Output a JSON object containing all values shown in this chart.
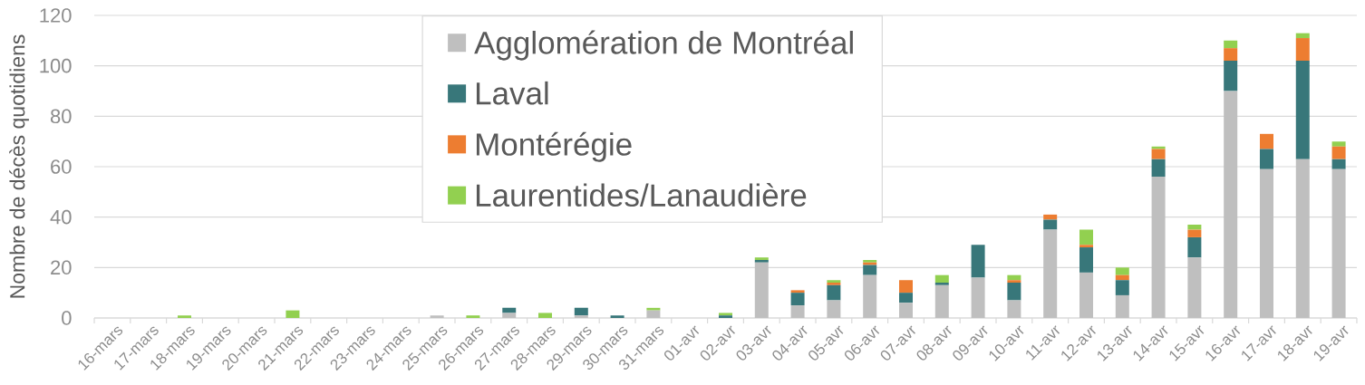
{
  "chart_data": {
    "type": "bar",
    "stacked": true,
    "ylabel": "Nombre de décès quotidiens",
    "categories": [
      "16-mars",
      "17-mars",
      "18-mars",
      "19-mars",
      "20-mars",
      "21-mars",
      "22-mars",
      "23-mars",
      "24-mars",
      "25-mars",
      "26-mars",
      "27-mars",
      "28-mars",
      "29-mars",
      "30-mars",
      "31-mars",
      "01-avr",
      "02-avr",
      "03-avr",
      "04-avr",
      "05-avr",
      "06-avr",
      "07-avr",
      "08-avr",
      "09-avr",
      "10-avr",
      "11-avr",
      "12-avr",
      "13-avr",
      "14-avr",
      "15-avr",
      "16-avr",
      "17-avr",
      "18-avr",
      "19-avr"
    ],
    "series": [
      {
        "name": "Agglomération de Montréal",
        "color": "#bfbfbf",
        "values": [
          0,
          0,
          0,
          0,
          0,
          0,
          0,
          0,
          0,
          1,
          0,
          2,
          0,
          1,
          0,
          3,
          0,
          0,
          22,
          5,
          7,
          17,
          6,
          13,
          16,
          7,
          35,
          18,
          9,
          56,
          24,
          90,
          59,
          63,
          59
        ]
      },
      {
        "name": "Laval",
        "color": "#38777a",
        "values": [
          0,
          0,
          0,
          0,
          0,
          0,
          0,
          0,
          0,
          0,
          0,
          2,
          0,
          3,
          1,
          0,
          0,
          1,
          1,
          5,
          6,
          4,
          4,
          1,
          13,
          7,
          4,
          10,
          6,
          7,
          8,
          12,
          8,
          39,
          4
        ]
      },
      {
        "name": "Montérégie",
        "color": "#ed7d31",
        "values": [
          0,
          0,
          0,
          0,
          0,
          0,
          0,
          0,
          0,
          0,
          0,
          0,
          0,
          0,
          0,
          0,
          0,
          0,
          0,
          1,
          1,
          1,
          5,
          0,
          0,
          1,
          2,
          1,
          2,
          4,
          3,
          5,
          6,
          9,
          5
        ]
      },
      {
        "name": "Laurentides/Lanaudière",
        "color": "#92d050",
        "values": [
          0,
          0,
          1,
          0,
          0,
          3,
          0,
          0,
          0,
          0,
          1,
          0,
          2,
          0,
          0,
          1,
          0,
          1,
          1,
          0,
          1,
          1,
          0,
          3,
          0,
          2,
          0,
          6,
          3,
          1,
          2,
          3,
          0,
          2,
          2
        ]
      }
    ],
    "ylim": [
      0,
      120
    ],
    "yticks": [
      0,
      20,
      40,
      60,
      80,
      100,
      120
    ],
    "grid": "y",
    "legend": "top"
  }
}
